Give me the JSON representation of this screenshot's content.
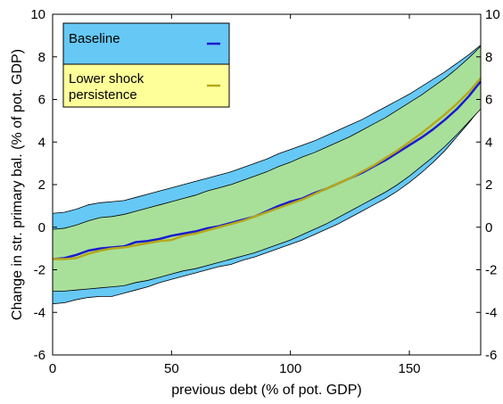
{
  "chart_data": {
    "type": "area",
    "xlabel": "previous debt (% of pot. GDP)",
    "ylabel": "Change in str. primary bal. (% of pot. GDP)",
    "xlim": [
      0,
      180
    ],
    "ylim": [
      -6,
      10
    ],
    "xticks": [
      0,
      50,
      100,
      150
    ],
    "yticks": [
      -6,
      -4,
      -2,
      0,
      2,
      4,
      6,
      8,
      10
    ],
    "grid": false,
    "legend_position": "top-left",
    "x": [
      0,
      5,
      10,
      15,
      20,
      25,
      30,
      35,
      40,
      45,
      50,
      55,
      60,
      65,
      70,
      75,
      80,
      85,
      90,
      95,
      100,
      105,
      110,
      115,
      120,
      125,
      130,
      135,
      140,
      145,
      150,
      155,
      160,
      165,
      170,
      175,
      180
    ],
    "series": [
      {
        "name": "Baseline",
        "color": "#1a1ad0",
        "band_color": "#66c8f5",
        "values": [
          -1.5,
          -1.45,
          -1.3,
          -1.1,
          -1.0,
          -0.95,
          -0.9,
          -0.7,
          -0.65,
          -0.55,
          -0.4,
          -0.3,
          -0.2,
          -0.05,
          0.05,
          0.2,
          0.35,
          0.5,
          0.75,
          1.0,
          1.2,
          1.35,
          1.6,
          1.8,
          2.05,
          2.3,
          2.55,
          2.85,
          3.15,
          3.5,
          3.85,
          4.2,
          4.6,
          5.05,
          5.55,
          6.15,
          6.85
        ],
        "lower": [
          -3.6,
          -3.55,
          -3.4,
          -3.3,
          -3.25,
          -3.25,
          -3.1,
          -2.95,
          -2.8,
          -2.6,
          -2.45,
          -2.3,
          -2.15,
          -2.0,
          -1.85,
          -1.75,
          -1.55,
          -1.4,
          -1.2,
          -1.0,
          -0.8,
          -0.6,
          -0.35,
          -0.1,
          0.15,
          0.45,
          0.75,
          1.05,
          1.35,
          1.7,
          2.1,
          2.55,
          3.05,
          3.6,
          4.25,
          4.9,
          5.6
        ],
        "upper": [
          0.65,
          0.7,
          0.85,
          1.05,
          1.15,
          1.2,
          1.25,
          1.4,
          1.55,
          1.7,
          1.85,
          2.0,
          2.15,
          2.3,
          2.45,
          2.6,
          2.8,
          3.0,
          3.2,
          3.45,
          3.65,
          3.85,
          4.05,
          4.3,
          4.55,
          4.8,
          5.05,
          5.35,
          5.65,
          5.95,
          6.25,
          6.6,
          6.95,
          7.3,
          7.7,
          8.1,
          8.55
        ]
      },
      {
        "name": "Lower shock persistence",
        "color": "#b5a81a",
        "band_color": "#a8e09a",
        "values": [
          -1.5,
          -1.5,
          -1.45,
          -1.25,
          -1.1,
          -1.0,
          -0.95,
          -0.85,
          -0.75,
          -0.65,
          -0.6,
          -0.4,
          -0.3,
          -0.15,
          0.0,
          0.15,
          0.3,
          0.5,
          0.7,
          0.9,
          1.1,
          1.3,
          1.55,
          1.8,
          2.05,
          2.3,
          2.6,
          2.9,
          3.25,
          3.6,
          4.0,
          4.4,
          4.85,
          5.3,
          5.8,
          6.35,
          7.0
        ],
        "lower": [
          -3.0,
          -3.0,
          -2.95,
          -2.9,
          -2.85,
          -2.8,
          -2.75,
          -2.6,
          -2.5,
          -2.35,
          -2.2,
          -2.05,
          -1.95,
          -1.8,
          -1.65,
          -1.5,
          -1.35,
          -1.2,
          -1.0,
          -0.8,
          -0.6,
          -0.35,
          -0.1,
          0.15,
          0.45,
          0.75,
          1.05,
          1.35,
          1.65,
          2.0,
          2.4,
          2.85,
          3.3,
          3.8,
          4.35,
          4.95,
          5.55
        ],
        "upper": [
          -0.1,
          -0.05,
          0.1,
          0.3,
          0.45,
          0.5,
          0.6,
          0.75,
          0.9,
          1.05,
          1.2,
          1.35,
          1.5,
          1.7,
          1.85,
          2.0,
          2.2,
          2.4,
          2.6,
          2.85,
          3.05,
          3.3,
          3.5,
          3.75,
          4.0,
          4.25,
          4.55,
          4.85,
          5.15,
          5.5,
          5.85,
          6.2,
          6.6,
          7.0,
          7.45,
          7.95,
          8.5
        ]
      }
    ]
  }
}
